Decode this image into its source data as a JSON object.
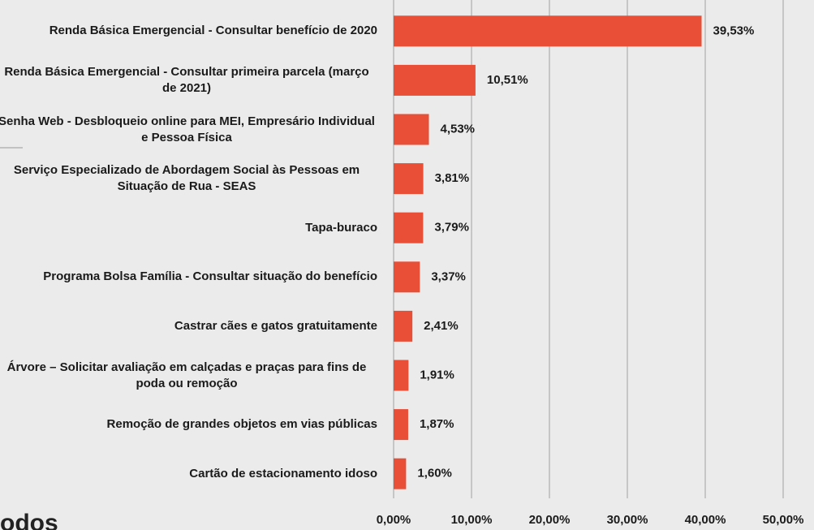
{
  "chart_data": {
    "type": "barh",
    "categories": [
      "Renda Básica Emergencial - Consultar benefício de 2020",
      "Renda Básica Emergencial - Consultar primeira parcela (março de 2021)",
      "Senha Web - Desbloqueio online para MEI, Empresário Individual e Pessoa Física",
      "Serviço Especializado de Abordagem Social às Pessoas em Situação de Rua - SEAS",
      "Tapa-buraco",
      "Programa Bolsa Família - Consultar situação do benefício",
      "Castrar cães e gatos gratuitamente",
      "Árvore – Solicitar avaliação em calçadas e praças para fins de poda ou remoção",
      "Remoção de grandes objetos em vias públicas",
      "Cartão de estacionamento idoso"
    ],
    "values": [
      39.53,
      10.51,
      4.53,
      3.81,
      3.79,
      3.37,
      2.41,
      1.91,
      1.87,
      1.6
    ],
    "value_labels": [
      "39,53%",
      "10,51%",
      "4,53%",
      "3,81%",
      "3,79%",
      "3,37%",
      "2,41%",
      "1,91%",
      "1,87%",
      "1,60%"
    ],
    "color": "#e94e37",
    "xlim": [
      0,
      50
    ],
    "xticks": [
      {
        "value": 0,
        "label": "0,00%"
      },
      {
        "value": 10,
        "label": "10,00%"
      },
      {
        "value": 20,
        "label": "20,00%"
      },
      {
        "value": 30,
        "label": "30,00%"
      },
      {
        "value": 40,
        "label": "40,00%"
      },
      {
        "value": 50,
        "label": "50,00%"
      }
    ],
    "grid": true
  },
  "background_text": "odos"
}
